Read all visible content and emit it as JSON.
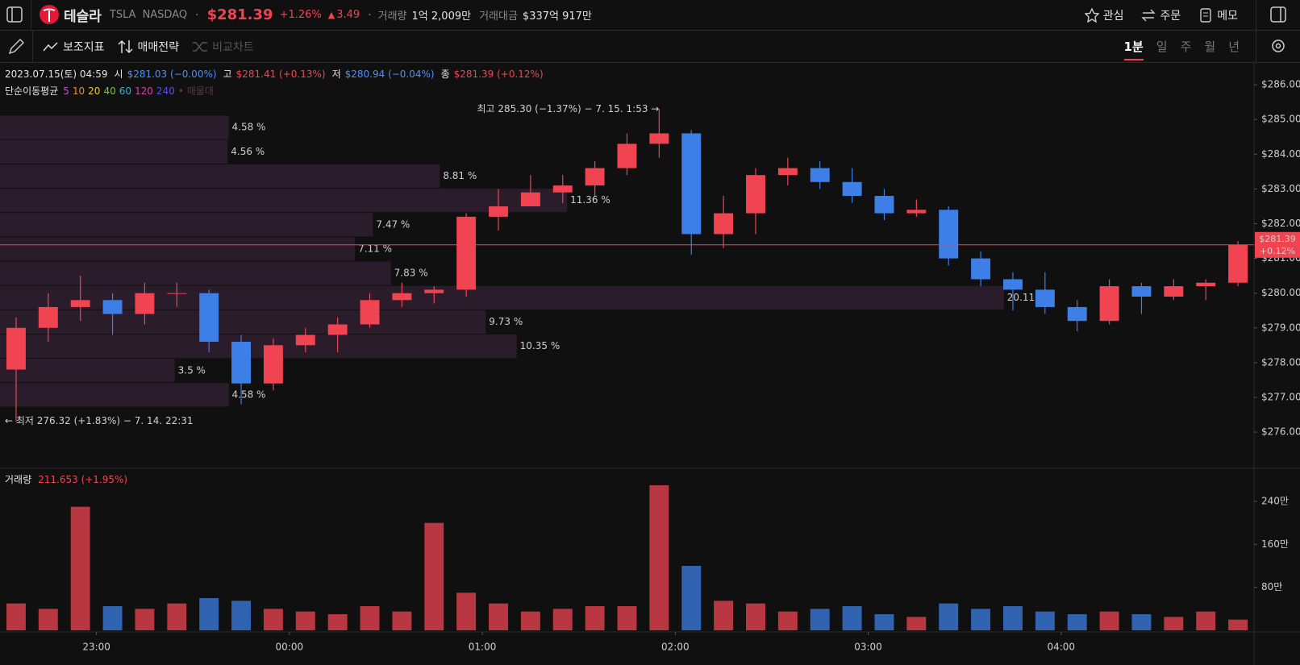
{
  "header": {
    "name": "테슬라",
    "ticker": "TSLA",
    "exchange": "NASDAQ",
    "price": "$281.39",
    "change_pct": "+1.26%",
    "change": "3.49",
    "volume_label": "거래량",
    "volume": "1억 2,009만",
    "amount_label": "거래대금",
    "amount": "$337억 917만",
    "actions": [
      "관심",
      "주문",
      "메모"
    ]
  },
  "toolbar": {
    "tools": [
      "보조지표",
      "매매전략",
      "비교차트"
    ],
    "intervals": [
      "1분",
      "일",
      "주",
      "월",
      "년"
    ],
    "active_interval": 0
  },
  "info": {
    "datetime": "2023.07.15(토) 04:59",
    "items": [
      {
        "label": "시",
        "value": "$281.03 (−0.00%)",
        "color": "#4f8ff7"
      },
      {
        "label": "고",
        "value": "$281.41 (+0.13%)",
        "color": "#f04452"
      },
      {
        "label": "저",
        "value": "$280.94 (−0.04%)",
        "color": "#4f8ff7"
      },
      {
        "label": "종",
        "value": "$281.39 (+0.12%)",
        "color": "#f04452"
      }
    ]
  },
  "ma_legend": {
    "title": "단순이동평균",
    "periods": [
      "5",
      "10",
      "20",
      "40",
      "60",
      "120",
      "240"
    ],
    "colors": [
      "#c34fd6",
      "#f0883a",
      "#e8c840",
      "#7cc24a",
      "#2fb5d6",
      "#d63fa8",
      "#5a4fe0"
    ],
    "extra": "• 매물대"
  },
  "chart_data": {
    "type": "candlestick",
    "categories": [
      "22:30",
      "22:40",
      "22:50",
      "23:00",
      "23:10",
      "23:20",
      "23:30",
      "23:40",
      "23:50",
      "00:00",
      "00:10",
      "00:20",
      "00:30",
      "00:40",
      "00:50",
      "01:00",
      "01:10",
      "01:20",
      "01:30",
      "01:40",
      "01:50",
      "02:00",
      "02:10",
      "02:20",
      "02:30",
      "02:40",
      "02:50",
      "03:00",
      "03:10",
      "03:20",
      "03:30",
      "03:40",
      "03:50",
      "04:00",
      "04:10",
      "04:20",
      "04:30",
      "04:40",
      "04:50"
    ],
    "open": [
      277.8,
      279.0,
      279.6,
      279.8,
      279.4,
      280.0,
      280.0,
      278.6,
      277.4,
      278.5,
      278.8,
      279.1,
      279.8,
      280.0,
      280.1,
      282.2,
      282.5,
      282.9,
      283.1,
      283.6,
      284.3,
      284.6,
      281.7,
      282.3,
      283.4,
      283.6,
      283.2,
      282.8,
      282.3,
      282.4,
      281.0,
      280.4,
      280.1,
      279.6,
      279.2,
      280.2,
      279.9,
      280.2,
      280.3
    ],
    "high": [
      279.3,
      280.0,
      280.5,
      280.0,
      280.3,
      280.3,
      280.1,
      278.8,
      278.7,
      279.0,
      279.3,
      280.0,
      280.3,
      280.2,
      282.3,
      283.0,
      283.4,
      283.4,
      283.8,
      284.6,
      285.3,
      284.7,
      282.8,
      283.6,
      283.9,
      283.8,
      283.6,
      283.0,
      282.7,
      282.5,
      281.2,
      280.6,
      280.6,
      279.8,
      280.4,
      280.3,
      280.4,
      280.4,
      281.5
    ],
    "low": [
      276.3,
      278.6,
      279.2,
      278.8,
      279.1,
      279.6,
      278.3,
      276.8,
      277.2,
      278.3,
      278.3,
      279.0,
      279.6,
      279.7,
      279.9,
      281.8,
      282.5,
      282.6,
      282.8,
      283.4,
      283.9,
      281.1,
      281.3,
      281.7,
      283.1,
      283.0,
      282.6,
      282.1,
      282.2,
      280.8,
      280.2,
      279.5,
      279.4,
      278.9,
      279.1,
      279.4,
      279.8,
      279.8,
      280.2
    ],
    "close": [
      279.0,
      279.6,
      279.8,
      279.4,
      280.0,
      280.0,
      278.6,
      277.4,
      278.5,
      278.8,
      279.1,
      279.8,
      280.0,
      280.1,
      282.2,
      282.5,
      282.9,
      283.1,
      283.6,
      284.3,
      284.6,
      281.7,
      282.3,
      283.4,
      283.6,
      283.2,
      282.8,
      282.3,
      282.4,
      281.0,
      280.4,
      280.1,
      279.6,
      279.2,
      280.2,
      279.9,
      280.2,
      280.3,
      281.39
    ],
    "up_color": "#f04452",
    "down_color": "#3d7fe6",
    "ylim": [
      274.98,
      286.63
    ],
    "yticks": [
      {
        "value": 276,
        "label": "$276.00"
      },
      {
        "value": 277,
        "label": "$277.00"
      },
      {
        "value": 278,
        "label": "$278.00"
      },
      {
        "value": 279,
        "label": "$279.00"
      },
      {
        "value": 280,
        "label": "$280.00"
      },
      {
        "value": 281,
        "label": "$281.00"
      },
      {
        "value": 282,
        "label": "$282.00"
      },
      {
        "value": 283,
        "label": "$283.00"
      },
      {
        "value": 284,
        "label": "$284.00"
      },
      {
        "value": 285,
        "label": "$285.00"
      },
      {
        "value": 286,
        "label": "$286.00"
      }
    ],
    "xticks": [
      "23:00",
      "00:00",
      "01:00",
      "02:00",
      "03:00",
      "04:00"
    ],
    "last": {
      "value": 281.39,
      "label": "$281.39",
      "change": "+0.12%"
    },
    "annotations": {
      "high": {
        "value": 285.3,
        "text": "최고 285.30 (−1.37%) − 7. 15. 1:53 →",
        "color": "#f04452"
      },
      "low": {
        "value": 276.32,
        "text": "← 최저 276.32 (+1.83%) − 7. 14. 22:31",
        "color": "#4f8ff7"
      }
    },
    "profile": {
      "bins": [
        285.12,
        284.42,
        283.72,
        283.02,
        282.32,
        281.62,
        280.92,
        280.22,
        279.52,
        278.82,
        278.12,
        277.42,
        276.72
      ],
      "values": [
        4.58,
        4.56,
        8.81,
        11.36,
        7.47,
        7.11,
        7.83,
        20.11,
        9.73,
        10.35,
        3.5,
        4.58
      ],
      "value_labels": [
        "4.58 %",
        "4.56 %",
        "8.81 %",
        "11.36 %",
        "7.47 %",
        "7.11 %",
        "7.83 %",
        "20.11 %",
        "9.73 %",
        "10.35 %",
        "3.5 %",
        "4.58 %"
      ],
      "color": "#2b1c2b"
    },
    "volume": {
      "title": "거래량",
      "last": "211.653 (+1.95%)",
      "values": [
        50,
        40,
        230,
        45,
        40,
        50,
        60,
        55,
        40,
        35,
        30,
        45,
        35,
        200,
        70,
        50,
        35,
        40,
        45,
        45,
        270,
        120,
        55,
        50,
        35,
        40,
        45,
        30,
        25,
        50,
        40,
        45,
        35,
        30,
        35,
        30,
        25,
        35,
        20
      ],
      "ylim": [
        0,
        300
      ],
      "yticks": [
        {
          "value": 80,
          "label": "80만"
        },
        {
          "value": 160,
          "label": "160만"
        },
        {
          "value": 240,
          "label": "240만"
        }
      ]
    }
  }
}
